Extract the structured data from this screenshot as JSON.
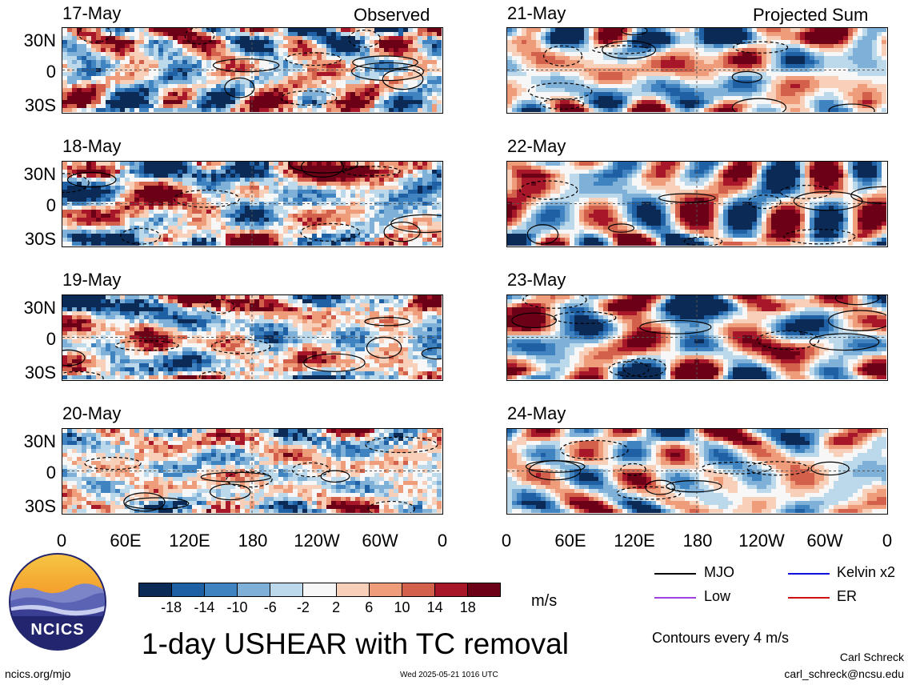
{
  "observed_label": "Observed",
  "projected_label": "Projected Sum",
  "panels_left": [
    {
      "date": "17-May"
    },
    {
      "date": "18-May"
    },
    {
      "date": "19-May"
    },
    {
      "date": "20-May"
    }
  ],
  "panels_right": [
    {
      "date": "21-May"
    },
    {
      "date": "22-May"
    },
    {
      "date": "23-May"
    },
    {
      "date": "24-May"
    }
  ],
  "lat_labels": [
    "30N",
    "0",
    "30S"
  ],
  "lon_labels": [
    "0",
    "60E",
    "120E",
    "180",
    "120W",
    "60W",
    "0"
  ],
  "colorbar": {
    "ticks": [
      "-18",
      "-14",
      "-10",
      "-6",
      "-2",
      "2",
      "6",
      "10",
      "14",
      "18"
    ],
    "colors": [
      "#0b2a55",
      "#1f5fa3",
      "#3f83c0",
      "#7fb1d8",
      "#bcd9ec",
      "#f7f7f7",
      "#f8cfb8",
      "#ef9c7b",
      "#d2604b",
      "#a8162a",
      "#6c0016"
    ],
    "unit": "m/s"
  },
  "legend": {
    "mjo": "MJO",
    "kelvin": "Kelvin x2",
    "low": "Low",
    "er": "ER",
    "mjo_color": "#000000",
    "kelvin_color": "#1010e0",
    "low_color": "#a040e0",
    "er_color": "#d01010"
  },
  "title": "1-day USHEAR with TC removal",
  "contours_note": "Contours every 4 m/s",
  "logo_text": "NCICS",
  "site_url": "ncics.org/mjo",
  "timestamp": "Wed 2025-05-21 1016 UTC",
  "author": "Carl Schreck",
  "email": "carl_schreck@ncsu.edu",
  "chart_data": {
    "type": "heatmap",
    "variable": "1-day USHEAR with TC removal",
    "unit": "m/s",
    "color_levels": [
      -18,
      -14,
      -10,
      -6,
      -2,
      2,
      6,
      10,
      14,
      18
    ],
    "x_axis_ticks": [
      "0",
      "60E",
      "120E",
      "180",
      "120W",
      "60W",
      "0"
    ],
    "y_axis_ticks": [
      "30N",
      "0",
      "30S"
    ],
    "observed_dates": [
      "17-May",
      "18-May",
      "19-May",
      "20-May"
    ],
    "projected_dates": [
      "21-May",
      "22-May",
      "23-May",
      "24-May"
    ],
    "contour_interval": 4,
    "contour_series": [
      "MJO",
      "Kelvin x2",
      "Low",
      "ER"
    ]
  }
}
